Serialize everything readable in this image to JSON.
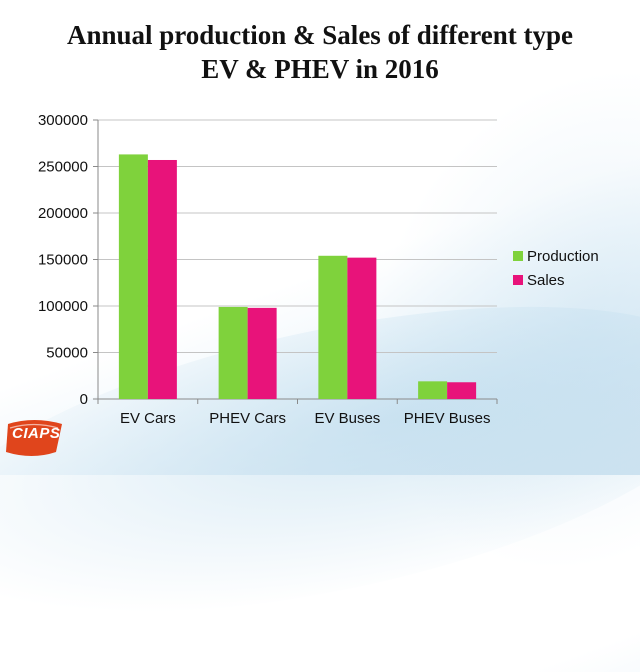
{
  "title_line1": "Annual production & Sales of different type",
  "title_line2": "EV & PHEV in 2016",
  "logo_text": "CIAPS",
  "chart_data": {
    "type": "bar",
    "categories": [
      "EV Cars",
      "PHEV Cars",
      "EV Buses",
      "PHEV Buses"
    ],
    "series": [
      {
        "name": "Production",
        "color": "#7fd23c",
        "values": [
          263000,
          99000,
          154000,
          19000
        ]
      },
      {
        "name": "Sales",
        "color": "#e8137a",
        "values": [
          257000,
          98000,
          152000,
          18000
        ]
      }
    ],
    "yticks": [
      "0",
      "50000",
      "100000",
      "150000",
      "200000",
      "250000",
      "300000"
    ],
    "ylim": [
      0,
      300000
    ],
    "grid": true,
    "legend_position": "right"
  }
}
